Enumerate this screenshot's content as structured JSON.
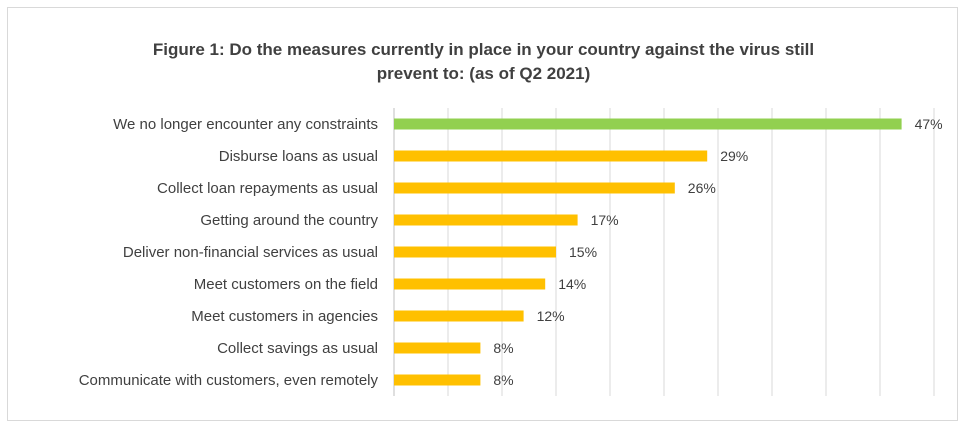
{
  "chart_data": {
    "type": "bar",
    "orientation": "horizontal",
    "title_line1": "Figure 1: Do the measures currently in place in your country against the virus still",
    "title_line2": "prevent to: (as of Q2 2021)",
    "categories": [
      "We no longer encounter any constraints",
      "Disburse loans as usual",
      "Collect loan repayments as usual",
      "Getting around the country",
      "Deliver non-financial services as usual",
      "Meet customers on the field",
      "Meet customers in agencies",
      "Collect savings as usual",
      "Communicate with customers, even remotely"
    ],
    "values": [
      47,
      29,
      26,
      17,
      15,
      14,
      12,
      8,
      8
    ],
    "value_labels": [
      "47%",
      "29%",
      "26%",
      "17%",
      "15%",
      "14%",
      "12%",
      "8%",
      "8%"
    ],
    "colors": [
      "#92d050",
      "#ffc000",
      "#ffc000",
      "#ffc000",
      "#ffc000",
      "#ffc000",
      "#ffc000",
      "#ffc000",
      "#ffc000"
    ],
    "xlim": [
      0,
      50
    ],
    "grid": true,
    "legend": "none"
  }
}
